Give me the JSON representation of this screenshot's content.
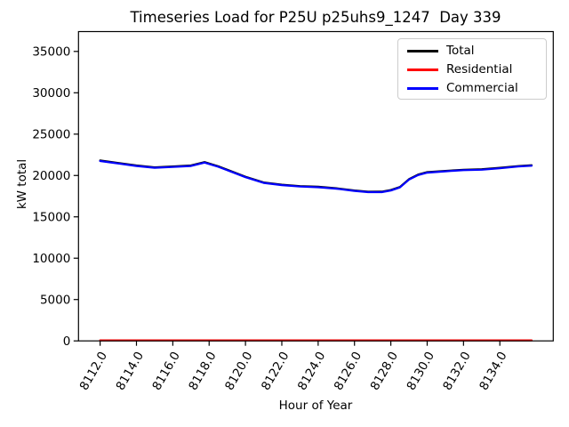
{
  "figure": {
    "title": "Timeseries Load for P25U p25uhs9_1247  Day 339",
    "xlabel": "Hour of Year",
    "ylabel": "kW total"
  },
  "chart_data": {
    "type": "line",
    "title": "Timeseries Load for P25U p25uhs9_1247  Day 339",
    "xlabel": "Hour of Year",
    "ylabel": "kW total",
    "grid": false,
    "xlim": [
      8110.81,
      8136.94
    ],
    "ylim": [
      0,
      37400
    ],
    "x_tick_labels": [
      "8112.0",
      "8114.0",
      "8116.0",
      "8118.0",
      "8120.0",
      "8122.0",
      "8124.0",
      "8126.0",
      "8128.0",
      "8130.0",
      "8132.0",
      "8134.0"
    ],
    "y_ticks": [
      0,
      5000,
      10000,
      15000,
      20000,
      25000,
      30000,
      35000
    ],
    "legend": {
      "position": "upper right",
      "entries": [
        "Total",
        "Residential",
        "Commercial"
      ]
    },
    "x": [
      8112.0,
      8113.0,
      8114.0,
      8115.0,
      8116.0,
      8117.0,
      8117.75,
      8118.5,
      8119.0,
      8120.0,
      8121.0,
      8122.0,
      8123.0,
      8124.0,
      8125.0,
      8126.0,
      8126.75,
      8127.5,
      8128.0,
      8128.5,
      8129.0,
      8129.5,
      8130.0,
      8131.0,
      8132.0,
      8133.0,
      8134.0,
      8135.0,
      8135.75
    ],
    "series": [
      {
        "name": "Total",
        "color": "#000000",
        "values": [
          21810,
          21510,
          21210,
          20990,
          21090,
          21210,
          21620,
          21110,
          20690,
          19850,
          19160,
          18890,
          18720,
          18640,
          18460,
          18190,
          18040,
          18050,
          18240,
          18610,
          19560,
          20110,
          20400,
          20560,
          20700,
          20760,
          20930,
          21140,
          21240
        ]
      },
      {
        "name": "Residential",
        "color": "#ff0000",
        "values": [
          60,
          60,
          60,
          60,
          60,
          60,
          60,
          60,
          60,
          60,
          60,
          60,
          60,
          60,
          60,
          60,
          60,
          60,
          60,
          60,
          60,
          60,
          60,
          60,
          60,
          60,
          60,
          60,
          60
        ]
      },
      {
        "name": "Commercial",
        "color": "#0000ff",
        "values": [
          21750,
          21450,
          21150,
          20930,
          21030,
          21150,
          21560,
          21050,
          20630,
          19790,
          19100,
          18830,
          18660,
          18580,
          18400,
          18130,
          17980,
          17990,
          18180,
          18550,
          19500,
          20050,
          20340,
          20500,
          20640,
          20700,
          20870,
          21080,
          21180
        ]
      }
    ]
  }
}
